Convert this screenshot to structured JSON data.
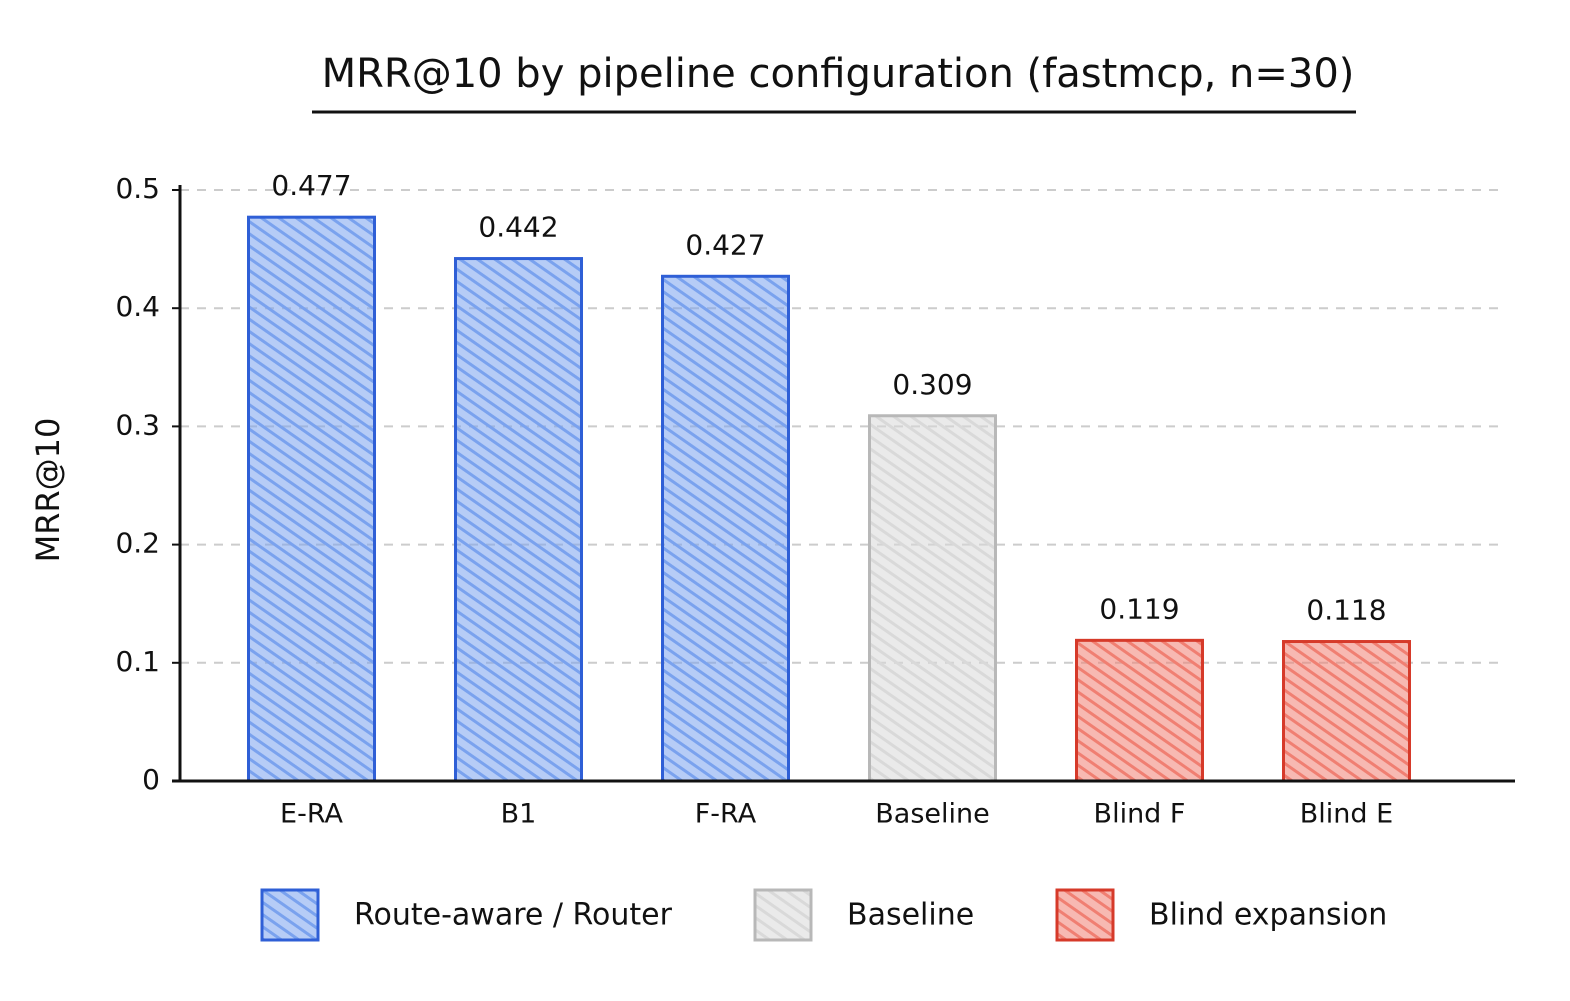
{
  "chart_data": {
    "type": "bar",
    "title": "MRR@10 by pipeline configuration (fastmcp, n=30)",
    "y_label": "MRR@10",
    "categories": [
      "E-RA",
      "B1",
      "F-RA",
      "Baseline",
      "Blind F",
      "Blind E"
    ],
    "series": [
      {
        "name": "Route-aware / Router",
        "color": "#2f5fd6",
        "fill": "#7aa2ee",
        "values": [
          0.477,
          0.442,
          0.427,
          null,
          null,
          null
        ]
      },
      {
        "name": "Baseline",
        "color": "#b8b8b8",
        "fill": "#d9d9d9",
        "values": [
          null,
          null,
          null,
          0.309,
          null,
          null
        ]
      },
      {
        "name": "Blind expansion",
        "color": "#d63a2a",
        "fill": "#f07f72",
        "values": [
          null,
          null,
          null,
          null,
          0.119,
          0.118
        ]
      }
    ],
    "ylim": [
      0,
      0.5
    ],
    "yticks": [
      0,
      0.1,
      0.2,
      0.3,
      0.4,
      0.5
    ],
    "grid": true,
    "legend": "bottom"
  }
}
